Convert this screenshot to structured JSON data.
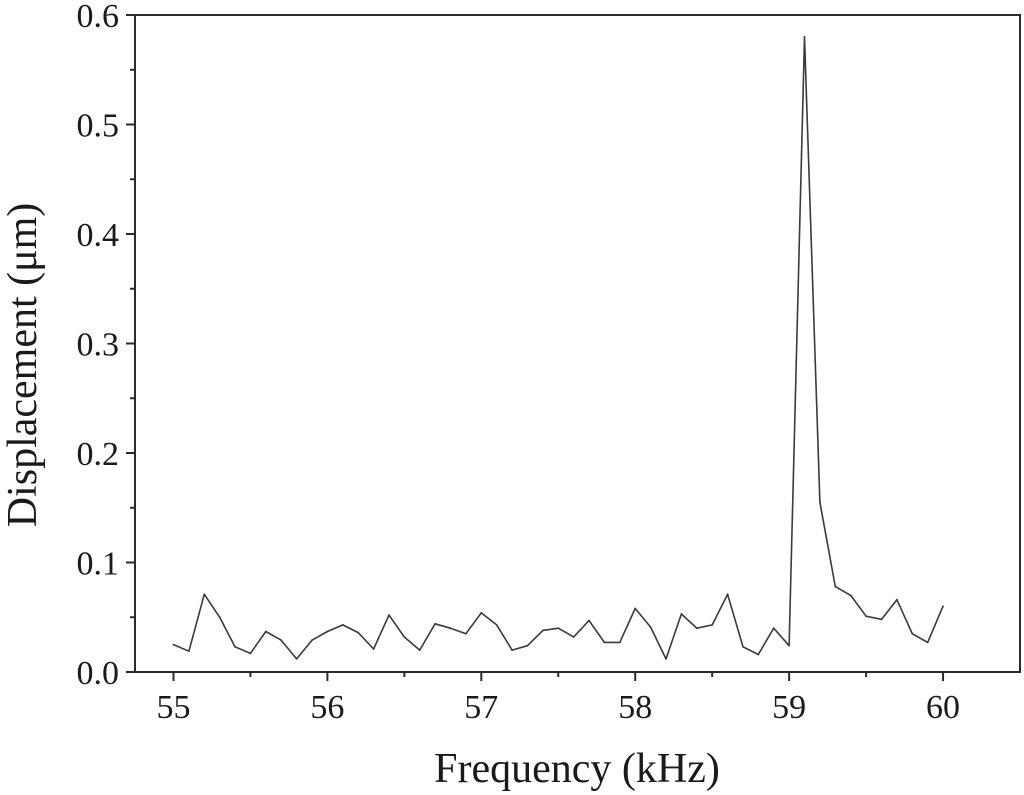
{
  "chart_data": {
    "type": "line",
    "title": "",
    "xlabel": "Frequency (kHz)",
    "ylabel": "Displacement (μm)",
    "xlim": [
      54.75,
      60.5
    ],
    "ylim": [
      0.0,
      0.6
    ],
    "xticks": [
      55,
      56,
      57,
      58,
      59,
      60
    ],
    "xtick_labels": [
      "55",
      "56",
      "57",
      "58",
      "59",
      "60"
    ],
    "yticks": [
      0.0,
      0.1,
      0.2,
      0.3,
      0.4,
      0.5,
      0.6
    ],
    "ytick_labels": [
      "0.0",
      "0.1",
      "0.2",
      "0.3",
      "0.4",
      "0.5",
      "0.6"
    ],
    "grid": false,
    "legend": "none",
    "series": [
      {
        "color": "#3a3a3a",
        "x": [
          55.0,
          55.1,
          55.2,
          55.3,
          55.4,
          55.5,
          55.6,
          55.7,
          55.8,
          55.9,
          56.0,
          56.1,
          56.2,
          56.3,
          56.4,
          56.5,
          56.6,
          56.7,
          56.8,
          56.9,
          57.0,
          57.1,
          57.2,
          57.3,
          57.4,
          57.5,
          57.6,
          57.7,
          57.8,
          57.9,
          58.0,
          58.1,
          58.2,
          58.3,
          58.4,
          58.5,
          58.6,
          58.7,
          58.8,
          58.9,
          59.0,
          59.1,
          59.2,
          59.3,
          59.4,
          59.5,
          59.6,
          59.7,
          59.8,
          59.9,
          60.0
        ],
        "y": [
          0.025,
          0.019,
          0.071,
          0.05,
          0.023,
          0.017,
          0.037,
          0.029,
          0.012,
          0.029,
          0.037,
          0.043,
          0.036,
          0.021,
          0.052,
          0.032,
          0.02,
          0.044,
          0.04,
          0.035,
          0.054,
          0.043,
          0.02,
          0.024,
          0.038,
          0.04,
          0.032,
          0.047,
          0.027,
          0.027,
          0.058,
          0.041,
          0.012,
          0.053,
          0.04,
          0.043,
          0.071,
          0.023,
          0.016,
          0.04,
          0.024,
          0.58,
          0.155,
          0.078,
          0.07,
          0.051,
          0.048,
          0.066,
          0.035,
          0.027,
          0.06
        ]
      }
    ]
  }
}
